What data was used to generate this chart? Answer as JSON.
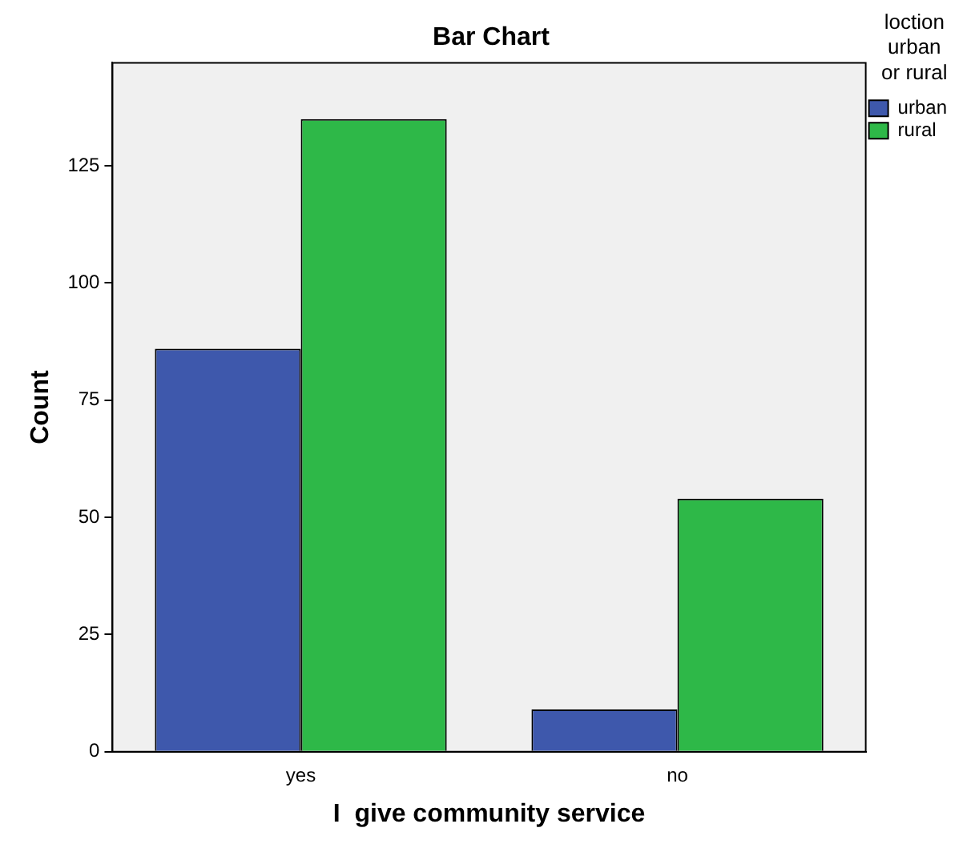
{
  "chart_data": {
    "type": "bar",
    "title": "Bar Chart",
    "xlabel": "I  give community service",
    "ylabel": "Count",
    "legend_title": "loction\nurban\nor rural",
    "categories": [
      "yes",
      "no"
    ],
    "series": [
      {
        "name": "urban",
        "color": "#3e58ac",
        "values": [
          86,
          9
        ]
      },
      {
        "name": "rural",
        "color": "#2eb848",
        "values": [
          135,
          54
        ]
      }
    ],
    "ylim": [
      0,
      147
    ],
    "yticks": [
      0,
      25,
      50,
      75,
      100,
      125
    ],
    "grid": false,
    "legend": "top right"
  }
}
